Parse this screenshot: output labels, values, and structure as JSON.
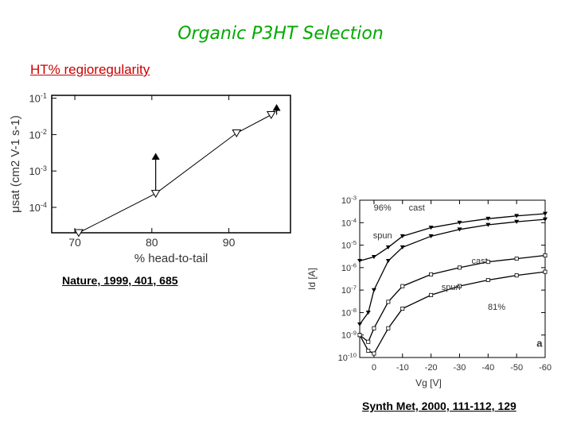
{
  "title": "Organic P3HT Selection",
  "subtitle": "HT% regioregularity",
  "references": {
    "left": "Nature, 1999, 401, 685",
    "right": "Synth Met, 2000, 111-112, 129"
  },
  "chart_data": [
    {
      "type": "scatter",
      "title": "",
      "xlabel": "% head-to-tail",
      "ylabel": "μsat (cm2 V-1 s-1)",
      "y_scale": "log",
      "xlim": [
        67,
        98
      ],
      "ylim": [
        2e-05,
        0.12
      ],
      "x_ticks": [
        "70",
        "80",
        "90"
      ],
      "y_ticks": [
        "10-1",
        "10-2",
        "10-3",
        "10-4"
      ],
      "series": [
        {
          "marker": "open-down-triangle",
          "points": [
            [
              70.5,
              2e-05
            ],
            [
              80.5,
              0.00024
            ],
            [
              91,
              0.011
            ],
            [
              95.5,
              0.035
            ]
          ]
        },
        {
          "marker": "filled-up-triangle",
          "points": [
            [
              80.5,
              0.0025
            ],
            [
              96.2,
              0.055
            ]
          ]
        }
      ],
      "annotations": []
    },
    {
      "type": "line",
      "title": "",
      "xlabel": "Vg [V]",
      "ylabel": "Id [A]",
      "y_scale": "log",
      "xlim": [
        5,
        -60
      ],
      "ylim": [
        1e-10,
        0.001
      ],
      "x_ticks": [
        "0",
        "-10",
        "-20",
        "-30",
        "-40",
        "-50",
        "-60"
      ],
      "y_ticks": [
        "10-3",
        "10-4",
        "10-5",
        "10-6",
        "10-7",
        "10-8",
        "10-9",
        "10-10"
      ],
      "series": [
        {
          "marker": "filled-down-triangle",
          "points": [
            [
              5,
              2e-06
            ],
            [
              0,
              3e-06
            ],
            [
              -5,
              8e-06
            ],
            [
              -10,
              2.5e-05
            ],
            [
              -20,
              6e-05
            ],
            [
              -30,
              0.0001
            ],
            [
              -40,
              0.00015
            ],
            [
              -50,
              0.0002
            ],
            [
              -60,
              0.00025
            ]
          ]
        },
        {
          "marker": "filled-down-triangle",
          "points": [
            [
              5,
              3e-09
            ],
            [
              2,
              1e-08
            ],
            [
              0,
              1e-07
            ],
            [
              -5,
              2e-06
            ],
            [
              -10,
              8e-06
            ],
            [
              -20,
              2.5e-05
            ],
            [
              -30,
              5e-05
            ],
            [
              -40,
              8e-05
            ],
            [
              -50,
              0.00011
            ],
            [
              -60,
              0.00014
            ]
          ]
        },
        {
          "marker": "open-diamond",
          "points": [
            [
              5,
              1e-09
            ],
            [
              2,
              5e-10
            ],
            [
              0,
              2e-09
            ],
            [
              -5,
              3e-08
            ],
            [
              -10,
              1.5e-07
            ],
            [
              -20,
              5e-07
            ],
            [
              -30,
              1e-06
            ],
            [
              -40,
              1.8e-06
            ],
            [
              -50,
              2.5e-06
            ],
            [
              -60,
              3.5e-06
            ]
          ]
        },
        {
          "marker": "open-diamond",
          "points": [
            [
              5,
              1e-09
            ],
            [
              2,
              2e-10
            ],
            [
              0,
              1.5e-10
            ],
            [
              -5,
              2e-09
            ],
            [
              -10,
              1.5e-08
            ],
            [
              -20,
              6e-08
            ],
            [
              -30,
              1.5e-07
            ],
            [
              -40,
              2.8e-07
            ],
            [
              -50,
              4.5e-07
            ],
            [
              -60,
              6.5e-07
            ]
          ]
        }
      ],
      "annotations": [
        {
          "text": "96%",
          "x": -3,
          "y": 0.00035
        },
        {
          "text": "cast",
          "x": -15,
          "y": 0.00035
        },
        {
          "text": "spun",
          "x": -3,
          "y": 2e-05
        },
        {
          "text": "cast",
          "x": -37,
          "y": 1.5e-06
        },
        {
          "text": "spun",
          "x": -27,
          "y": 1e-07
        },
        {
          "text": "81%",
          "x": -43,
          "y": 1.3e-08
        },
        {
          "text": "a",
          "x": -58,
          "y": 3e-10
        }
      ]
    }
  ]
}
